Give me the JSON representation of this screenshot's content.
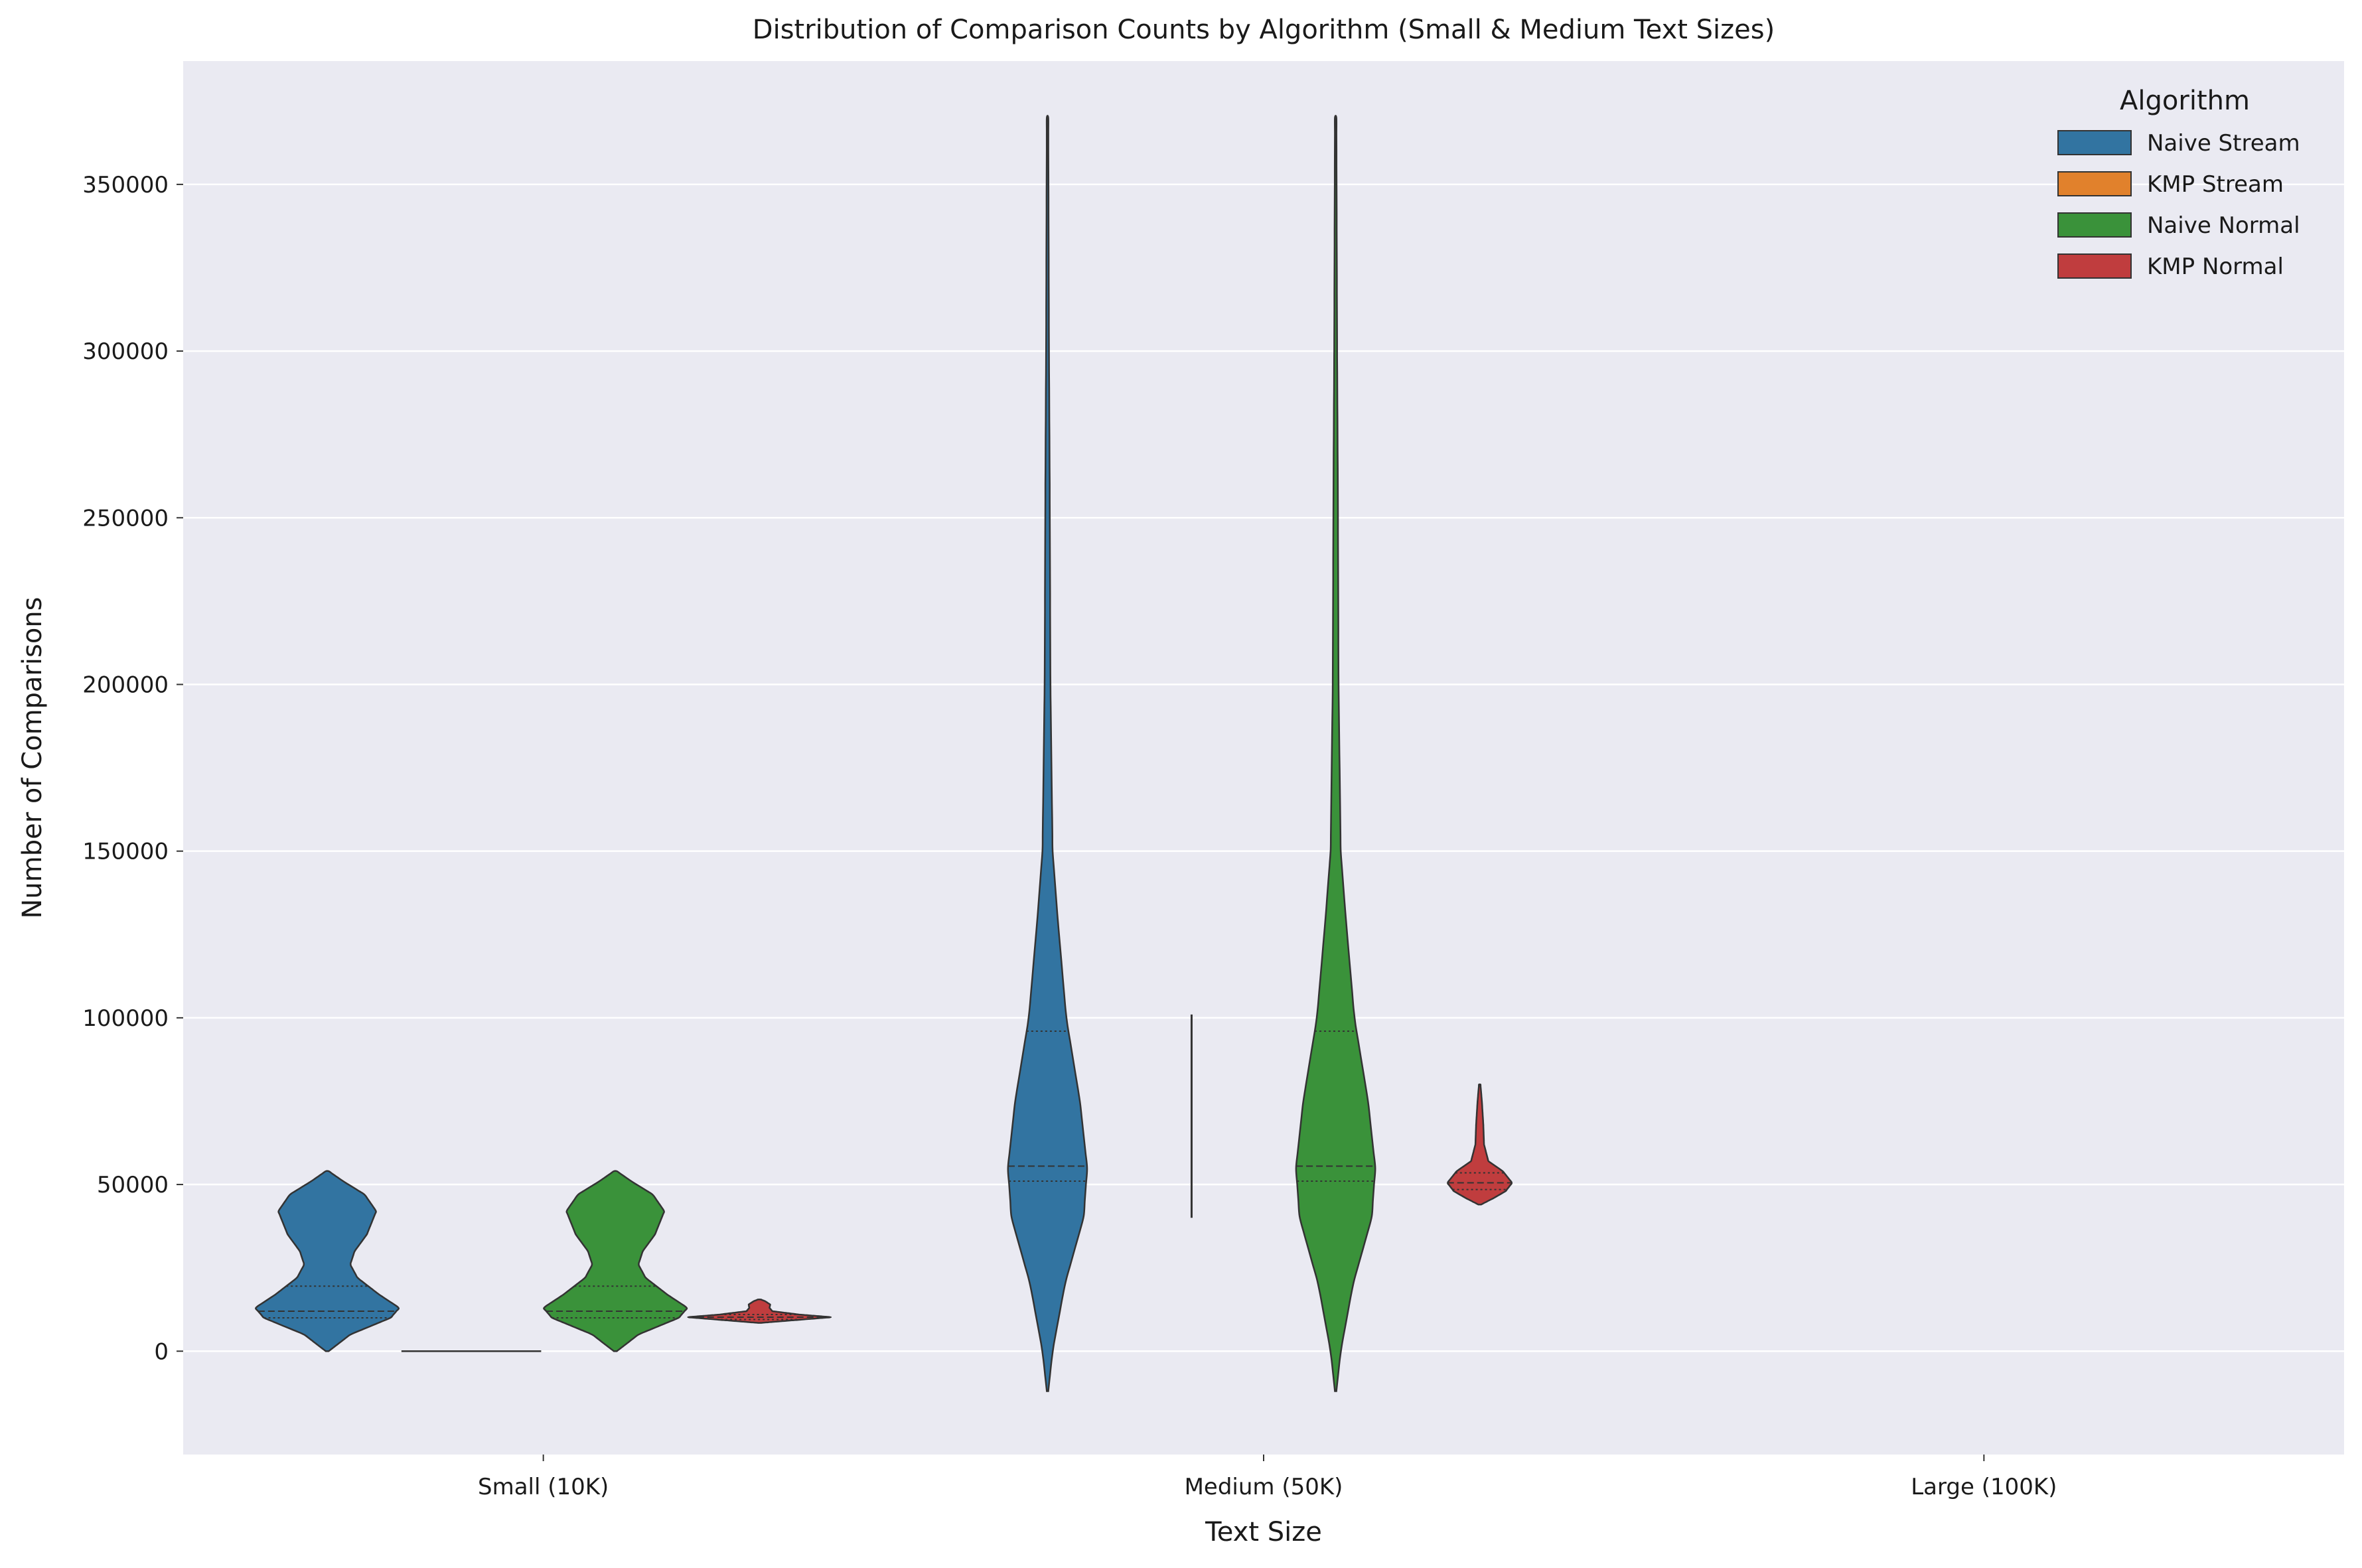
{
  "chart_data": {
    "type": "violin",
    "title": "Distribution of Comparison Counts by Algorithm (Small & Medium Text Sizes)",
    "xlabel": "Text Size",
    "ylabel": "Number of Comparisons",
    "categories": [
      "Small (10K)",
      "Medium (50K)",
      "Large (100K)"
    ],
    "ylim": [
      -31000,
      387000
    ],
    "yticks": [
      0,
      50000,
      100000,
      150000,
      200000,
      250000,
      300000,
      350000
    ],
    "ytick_labels": [
      "0",
      "50000",
      "100000",
      "150000",
      "200000",
      "250000",
      "300000",
      "350000"
    ],
    "grid": true,
    "legend": {
      "title": "Algorithm",
      "placement": "top-right"
    },
    "colors": {
      "Naive Stream": "#3274a1",
      "KMP Stream": "#e1812c",
      "Naive Normal": "#3a923a",
      "KMP Normal": "#c03d3e",
      "plot_background": "#eaeaf2",
      "grid": "#ffffff",
      "outline": "#333333"
    },
    "series": [
      {
        "name": "Naive Stream",
        "violins": [
          {
            "category": "Small (10K)",
            "min": 0,
            "max": 54000,
            "quartiles": [
              10000,
              12000,
              19500
            ],
            "profile": [
              [
                0,
                0.02
              ],
              [
                5000,
                0.32
              ],
              [
                10000,
                0.88
              ],
              [
                13000,
                1.0
              ],
              [
                17000,
                0.72
              ],
              [
                22000,
                0.42
              ],
              [
                26000,
                0.32
              ],
              [
                30000,
                0.38
              ],
              [
                35000,
                0.55
              ],
              [
                42000,
                0.68
              ],
              [
                47000,
                0.52
              ],
              [
                51000,
                0.22
              ],
              [
                54000,
                0.02
              ]
            ]
          },
          {
            "category": "Medium (50K)",
            "min": -12000,
            "max": 370000,
            "quartiles": [
              51000,
              55500,
              96000
            ],
            "profile": [
              [
                -12000,
                0.01
              ],
              [
                0,
                0.07
              ],
              [
                20000,
                0.24
              ],
              [
                40000,
                0.5
              ],
              [
                55000,
                0.55
              ],
              [
                75000,
                0.45
              ],
              [
                100000,
                0.26
              ],
              [
                130000,
                0.14
              ],
              [
                150000,
                0.07
              ],
              [
                200000,
                0.04
              ],
              [
                260000,
                0.03
              ],
              [
                300000,
                0.02
              ],
              [
                370000,
                0.01
              ]
            ]
          }
        ]
      },
      {
        "name": "KMP Stream",
        "violins": [
          {
            "category": "Small (10K)",
            "min": 0,
            "max": 0,
            "quartiles": [
              0,
              0,
              0
            ],
            "flat": true
          },
          {
            "category": "Medium (50K)",
            "min": 40000,
            "max": 101000,
            "quartiles": [
              40000,
              70000,
              101000
            ],
            "line_only": true
          }
        ]
      },
      {
        "name": "Naive Normal",
        "violins": [
          {
            "category": "Small (10K)",
            "min": 0,
            "max": 54000,
            "quartiles": [
              10000,
              12000,
              19500
            ],
            "profile": [
              [
                0,
                0.02
              ],
              [
                5000,
                0.32
              ],
              [
                10000,
                0.88
              ],
              [
                13000,
                1.0
              ],
              [
                17000,
                0.72
              ],
              [
                22000,
                0.42
              ],
              [
                26000,
                0.32
              ],
              [
                30000,
                0.38
              ],
              [
                35000,
                0.55
              ],
              [
                42000,
                0.68
              ],
              [
                47000,
                0.52
              ],
              [
                51000,
                0.22
              ],
              [
                54000,
                0.02
              ]
            ]
          },
          {
            "category": "Medium (50K)",
            "min": -12000,
            "max": 370000,
            "quartiles": [
              51000,
              55500,
              96000
            ],
            "profile": [
              [
                -12000,
                0.01
              ],
              [
                0,
                0.07
              ],
              [
                20000,
                0.24
              ],
              [
                40000,
                0.5
              ],
              [
                55000,
                0.55
              ],
              [
                75000,
                0.45
              ],
              [
                100000,
                0.26
              ],
              [
                130000,
                0.14
              ],
              [
                150000,
                0.07
              ],
              [
                200000,
                0.04
              ],
              [
                260000,
                0.03
              ],
              [
                300000,
                0.02
              ],
              [
                370000,
                0.01
              ]
            ]
          }
        ]
      },
      {
        "name": "KMP Normal",
        "violins": [
          {
            "category": "Small (10K)",
            "min": 8500,
            "max": 15500,
            "quartiles": [
              9500,
              10200,
              11000
            ],
            "profile": [
              [
                8500,
                0.02
              ],
              [
                9500,
                0.6
              ],
              [
                10200,
                1.0
              ],
              [
                11000,
                0.55
              ],
              [
                12000,
                0.18
              ],
              [
                13000,
                0.14
              ],
              [
                14000,
                0.15
              ],
              [
                15000,
                0.08
              ],
              [
                15500,
                0.02
              ]
            ]
          },
          {
            "category": "Medium (50K)",
            "min": 44000,
            "max": 80000,
            "quartiles": [
              48500,
              50500,
              53500
            ],
            "profile": [
              [
                44000,
                0.02
              ],
              [
                46000,
                0.2
              ],
              [
                48000,
                0.36
              ],
              [
                50500,
                0.45
              ],
              [
                54000,
                0.32
              ],
              [
                57000,
                0.12
              ],
              [
                62000,
                0.06
              ],
              [
                68000,
                0.05
              ],
              [
                75000,
                0.03
              ],
              [
                80000,
                0.01
              ]
            ]
          }
        ]
      }
    ]
  }
}
